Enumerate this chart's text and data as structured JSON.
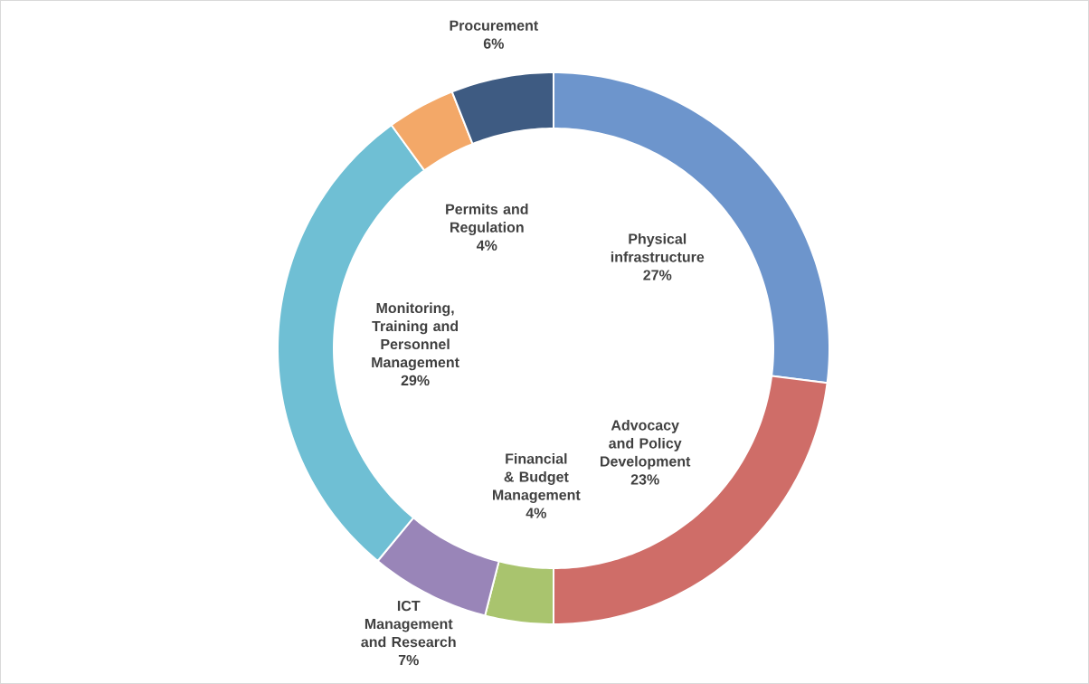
{
  "chart_data": {
    "type": "donut",
    "categories": [
      "Physical infrastructure",
      "Advocacy and Policy Development",
      "Financial & Budget Management",
      "ICT Management and Research",
      "Monitoring, Training and Personnel Management",
      "Permits and Regulation",
      "Procurement"
    ],
    "values": [
      27,
      23,
      4,
      7,
      29,
      4,
      6
    ],
    "value_labels": [
      "27%",
      "23%",
      "4%",
      "7%",
      "29%",
      "4%",
      "6%"
    ],
    "colors": [
      "#6d95cc",
      "#cf6d68",
      "#a9c46e",
      "#9985b8",
      "#6fbfd4",
      "#f3a868",
      "#3e5b82"
    ]
  }
}
